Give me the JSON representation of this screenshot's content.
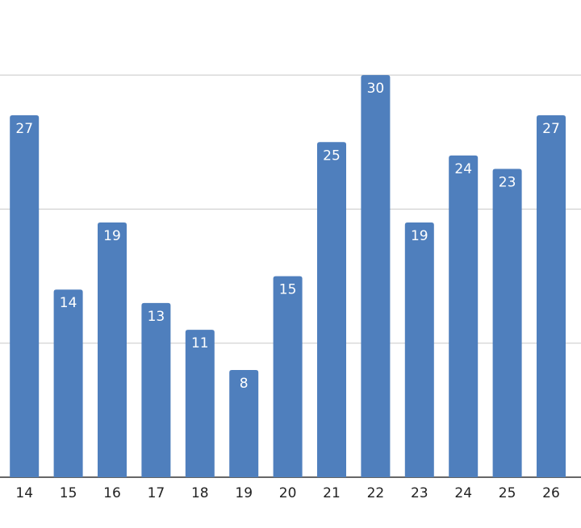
{
  "chart_data": {
    "type": "bar",
    "categories": [
      "14",
      "15",
      "16",
      "17",
      "18",
      "19",
      "20",
      "21",
      "22",
      "23",
      "24",
      "25",
      "26"
    ],
    "values": [
      27,
      14,
      19,
      13,
      11,
      8,
      15,
      25,
      30,
      19,
      24,
      23,
      27
    ],
    "color": "#4f7fbd",
    "ylim": [
      0,
      35
    ],
    "yticks": [
      0,
      10,
      20,
      30
    ],
    "grid": true
  }
}
